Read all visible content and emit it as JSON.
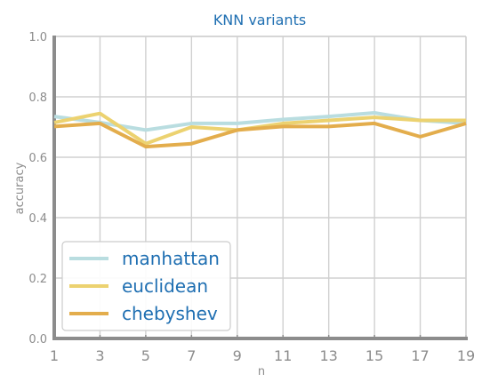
{
  "chart_data": {
    "type": "line",
    "title": "KNN variants",
    "xlabel": "n",
    "ylabel": "accuracy",
    "x": [
      1,
      3,
      5,
      7,
      9,
      11,
      13,
      15,
      17,
      19
    ],
    "xlim": [
      1,
      19
    ],
    "ylim": [
      0.0,
      1.0
    ],
    "xticks": [
      "1",
      "3",
      "5",
      "7",
      "9",
      "11",
      "13",
      "15",
      "17",
      "19"
    ],
    "yticks": [
      "0.0",
      "0.2",
      "0.4",
      "0.6",
      "0.8",
      "1.0"
    ],
    "grid": true,
    "legend_position": "lower-left",
    "series": [
      {
        "name": "manhattan",
        "color": "#b9dde0",
        "values": [
          0.735,
          0.715,
          0.69,
          0.712,
          0.712,
          0.725,
          0.735,
          0.747,
          0.722,
          0.712
        ]
      },
      {
        "name": "euclidean",
        "color": "#ecd270",
        "values": [
          0.715,
          0.745,
          0.645,
          0.7,
          0.69,
          0.712,
          0.722,
          0.732,
          0.722,
          0.722
        ]
      },
      {
        "name": "chebyshev",
        "color": "#e3ad4c",
        "values": [
          0.702,
          0.712,
          0.635,
          0.645,
          0.69,
          0.702,
          0.702,
          0.712,
          0.668,
          0.712
        ]
      }
    ]
  }
}
